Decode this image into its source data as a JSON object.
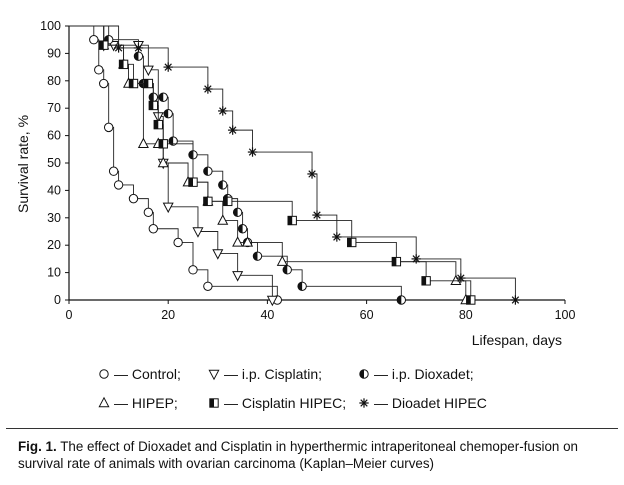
{
  "chart_data": {
    "type": "line",
    "step": true,
    "xlabel": "Lifespan, days",
    "ylabel": "Survival rate, %",
    "xlim": [
      0,
      100
    ],
    "ylim": [
      0,
      100
    ],
    "xticks": [
      0,
      20,
      40,
      60,
      80,
      100
    ],
    "yticks": [
      0,
      10,
      20,
      30,
      40,
      50,
      60,
      70,
      80,
      90,
      100
    ],
    "legend": {
      "placement": "bottom"
    },
    "series": [
      {
        "name": "Control",
        "marker": "circle",
        "points": [
          [
            5,
            95
          ],
          [
            6,
            84
          ],
          [
            7,
            79
          ],
          [
            8,
            63
          ],
          [
            9,
            47
          ],
          [
            10,
            42
          ],
          [
            13,
            37
          ],
          [
            16,
            32
          ],
          [
            17,
            26
          ],
          [
            22,
            21
          ],
          [
            25,
            11
          ],
          [
            28,
            5
          ],
          [
            42,
            0
          ]
        ]
      },
      {
        "name": "i.p. Cisplatin",
        "marker": "triangle-down",
        "points": [
          [
            7,
            93
          ],
          [
            9,
            93
          ],
          [
            14,
            93
          ],
          [
            16,
            84
          ],
          [
            18,
            67
          ],
          [
            19,
            50
          ],
          [
            20,
            34
          ],
          [
            26,
            25
          ],
          [
            30,
            17
          ],
          [
            34,
            9
          ],
          [
            41,
            0
          ]
        ]
      },
      {
        "name": "i.p. Dioxadet",
        "marker": "circle-half",
        "points": [
          [
            8,
            95
          ],
          [
            14,
            89
          ],
          [
            15,
            79
          ],
          [
            17,
            74
          ],
          [
            19,
            74
          ],
          [
            20,
            68
          ],
          [
            21,
            58
          ],
          [
            25,
            53
          ],
          [
            28,
            47
          ],
          [
            31,
            42
          ],
          [
            32,
            37
          ],
          [
            34,
            32
          ],
          [
            35,
            26
          ],
          [
            36,
            21
          ],
          [
            38,
            16
          ],
          [
            44,
            11
          ],
          [
            47,
            5
          ],
          [
            67,
            0
          ]
        ]
      },
      {
        "name": "HIPEP",
        "marker": "triangle-up",
        "points": [
          [
            7,
            93
          ],
          [
            11,
            86
          ],
          [
            12,
            79
          ],
          [
            15,
            57
          ],
          [
            18,
            57
          ],
          [
            19,
            50
          ],
          [
            24,
            43
          ],
          [
            28,
            36
          ],
          [
            31,
            29
          ],
          [
            34,
            21
          ],
          [
            36,
            21
          ],
          [
            43,
            14
          ],
          [
            78,
            7
          ],
          [
            80,
            0
          ]
        ]
      },
      {
        "name": "Cisplatin HIPEC",
        "marker": "square-half",
        "points": [
          [
            7,
            93
          ],
          [
            11,
            86
          ],
          [
            13,
            79
          ],
          [
            16,
            79
          ],
          [
            17,
            71
          ],
          [
            18,
            64
          ],
          [
            19,
            57
          ],
          [
            25,
            43
          ],
          [
            28,
            36
          ],
          [
            32,
            36
          ],
          [
            45,
            29
          ],
          [
            57,
            21
          ],
          [
            66,
            14
          ],
          [
            72,
            7
          ],
          [
            81,
            0
          ]
        ]
      },
      {
        "name": "Dioadet HIPEC",
        "marker": "asterisk",
        "points": [
          [
            10,
            92
          ],
          [
            14,
            92
          ],
          [
            20,
            85
          ],
          [
            28,
            77
          ],
          [
            31,
            69
          ],
          [
            33,
            62
          ],
          [
            37,
            54
          ],
          [
            49,
            46
          ],
          [
            50,
            31
          ],
          [
            54,
            23
          ],
          [
            70,
            15
          ],
          [
            79,
            8
          ],
          [
            90,
            0
          ]
        ]
      }
    ]
  },
  "legend_entries": [
    "— Control;",
    "— i.p. Cisplatin;",
    "— i.p. Dioxadet;",
    "— HIPEP;",
    "— Cisplatin HIPEC;",
    "— Dioadet HIPEC"
  ],
  "caption": {
    "label": "Fig. 1.",
    "text": "The effect of Dioxadet and Cisplatin in hyperthermic intraperitoneal chemoper-fusion on survival rate of animals with ovarian carcinoma (Kaplan–Meier curves)"
  }
}
